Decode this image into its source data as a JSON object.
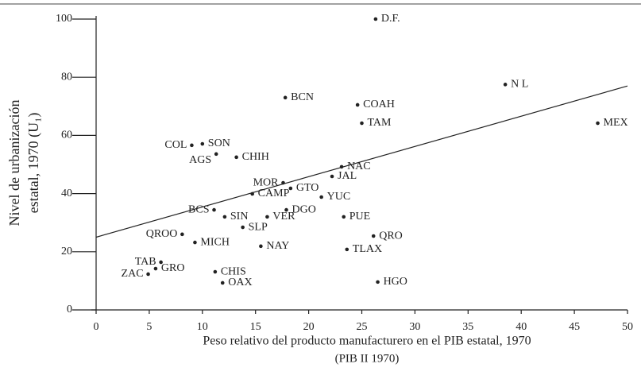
{
  "chart_data": {
    "type": "scatter",
    "xlabel": [
      "Peso relativo del producto manufacturero en el PIB estatal, 1970",
      "(PIB II 1970)"
    ],
    "ylabel": [
      "Nivel de urbanización",
      "estatal, 1970 (U₁)"
    ],
    "labels": [
      "D.F.",
      "N L",
      "MEX",
      "BCN",
      "COAH",
      "TAM",
      "COL",
      "SON",
      "AGS",
      "CHIH",
      "NAC",
      "JAL",
      "MOR",
      "GTO",
      "CAMP",
      "YUC",
      "BCS",
      "DGO",
      "SIN",
      "VER",
      "PUE",
      "SLP",
      "QROO",
      "QRO",
      "MICH",
      "NAY",
      "TLAX",
      "TAB",
      "GRO",
      "ZAC",
      "CHIS",
      "OAX",
      "HGO"
    ],
    "x": [
      26.3,
      38.5,
      47.2,
      17.8,
      24.6,
      25.0,
      9.0,
      10.0,
      11.3,
      13.2,
      23.1,
      22.2,
      17.6,
      18.3,
      14.7,
      21.2,
      11.1,
      17.9,
      12.1,
      16.1,
      23.3,
      13.8,
      8.1,
      26.1,
      9.3,
      15.5,
      23.6,
      6.1,
      5.6,
      4.9,
      11.2,
      11.9,
      26.5
    ],
    "y": [
      100,
      77.5,
      64.2,
      73,
      70.5,
      64.2,
      56.6,
      57.1,
      53.6,
      52.5,
      49.2,
      45.9,
      43.7,
      41.8,
      39.9,
      38.8,
      34.4,
      34.4,
      32,
      32,
      32,
      28.4,
      26,
      25.4,
      23.2,
      21.9,
      20.8,
      16.4,
      14.2,
      12.3,
      13.1,
      9.3,
      9.6
    ],
    "trend": {
      "x": [
        0,
        50
      ],
      "y": [
        25,
        77
      ]
    },
    "color": "#222222",
    "xlim": [
      0,
      50
    ],
    "xticks": [
      0,
      5,
      10,
      15,
      20,
      25,
      30,
      35,
      40,
      45,
      50
    ],
    "ylim": [
      0,
      100
    ],
    "yticks": [
      0,
      20,
      40,
      60,
      80,
      100
    ]
  }
}
